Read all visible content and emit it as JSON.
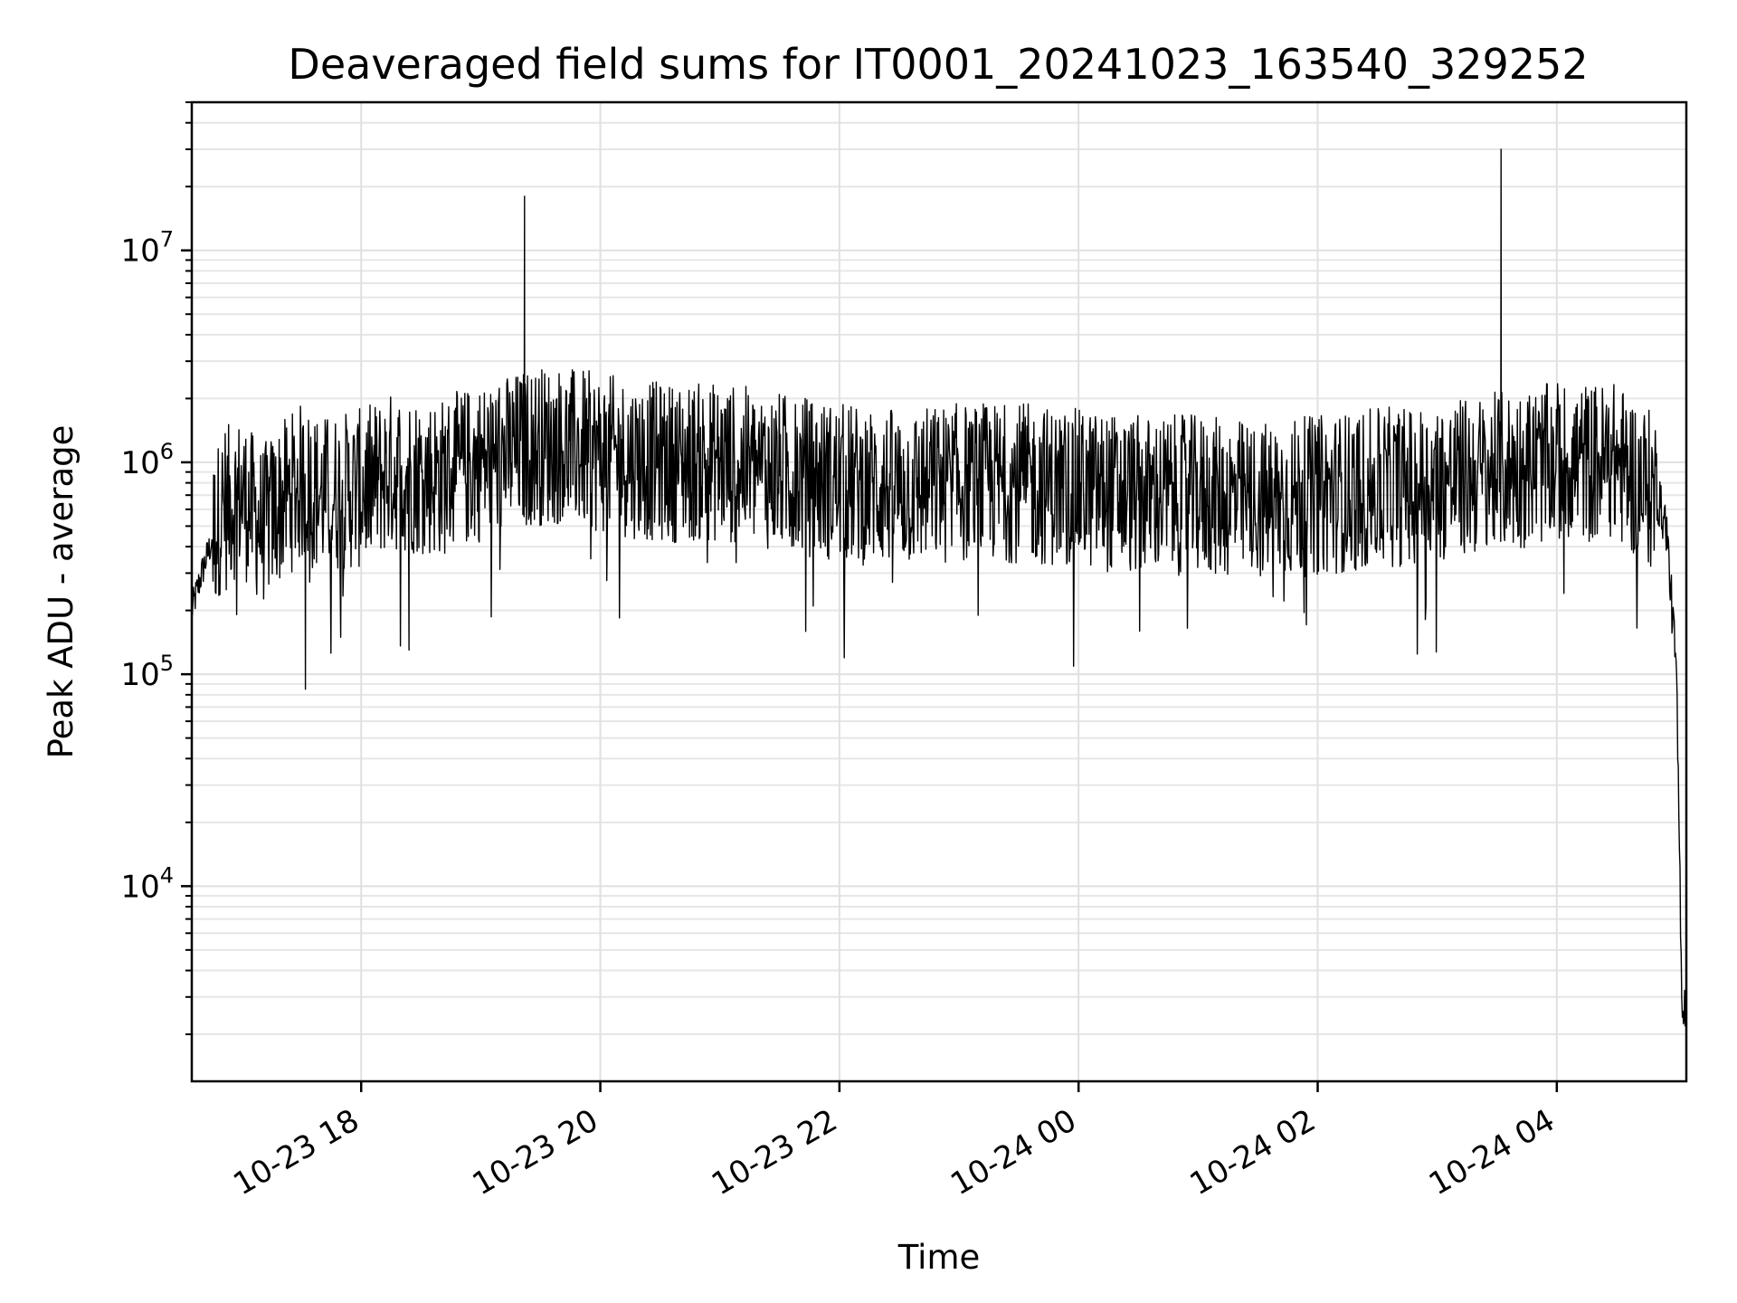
{
  "chart_data": {
    "type": "line",
    "title": "Deaveraged field sums for IT0001_20241023_163540_329252",
    "xlabel": "Time",
    "ylabel": "Peak ADU - average",
    "yscale": "log",
    "ylim": [
      1200,
      50000000
    ],
    "xlim": [
      "2024-10-23 16:35",
      "2024-10-24 05:05"
    ],
    "x_ticks": [
      "2024-10-23 18:00",
      "2024-10-23 20:00",
      "2024-10-23 22:00",
      "2024-10-24 00:00",
      "2024-10-24 02:00",
      "2024-10-24 04:00"
    ],
    "x_tick_labels": [
      "10-23 18",
      "10-23 20",
      "10-23 22",
      "10-24 00",
      "10-24 02",
      "10-24 04"
    ],
    "y_ticks": [
      10000,
      100000,
      1000000,
      10000000
    ],
    "y_tick_base": "10",
    "y_tick_exponents": [
      "4",
      "5",
      "6",
      "7"
    ],
    "grid": "both (major and minor)",
    "line_color": "#000000",
    "series": [
      {
        "x": [
          "2024-10-23 16:35",
          "2024-10-23 16:40",
          "2024-10-23 16:50",
          "2024-10-23 17:00",
          "2024-10-23 17:10",
          "2024-10-23 17:20",
          "2024-10-23 17:30",
          "2024-10-23 17:32",
          "2024-10-23 17:40",
          "2024-10-23 18:00",
          "2024-10-23 18:15",
          "2024-10-23 18:24",
          "2024-10-23 18:40",
          "2024-10-23 19:00",
          "2024-10-23 19:15",
          "2024-10-23 19:22",
          "2024-10-23 19:28",
          "2024-10-23 19:40",
          "2024-10-23 20:00",
          "2024-10-23 20:30",
          "2024-10-23 21:00",
          "2024-10-23 21:30",
          "2024-10-23 22:00",
          "2024-10-23 22:30",
          "2024-10-23 23:00",
          "2024-10-23 23:30",
          "2024-10-24 00:00",
          "2024-10-24 00:30",
          "2024-10-24 01:00",
          "2024-10-24 01:30",
          "2024-10-24 02:00",
          "2024-10-24 02:30",
          "2024-10-24 03:00",
          "2024-10-24 03:30",
          "2024-10-24 03:32",
          "2024-10-24 04:00",
          "2024-10-24 04:30",
          "2024-10-24 04:50",
          "2024-10-24 04:55",
          "2024-10-24 05:00",
          "2024-10-24 05:03",
          "2024-10-24 05:05"
        ],
        "y": [
          200000,
          300000,
          600000,
          700000,
          500000,
          650000,
          800000,
          85000,
          700000,
          750000,
          900000,
          130000,
          850000,
          1000000,
          1100000,
          18000000,
          1200000,
          1200000,
          1100000,
          1000000,
          1000000,
          900000,
          800000,
          750000,
          800000,
          800000,
          750000,
          700000,
          700000,
          650000,
          700000,
          750000,
          800000,
          900000,
          30000000,
          1000000,
          1000000,
          700000,
          500000,
          100000,
          2500,
          3000
        ]
      }
    ]
  }
}
